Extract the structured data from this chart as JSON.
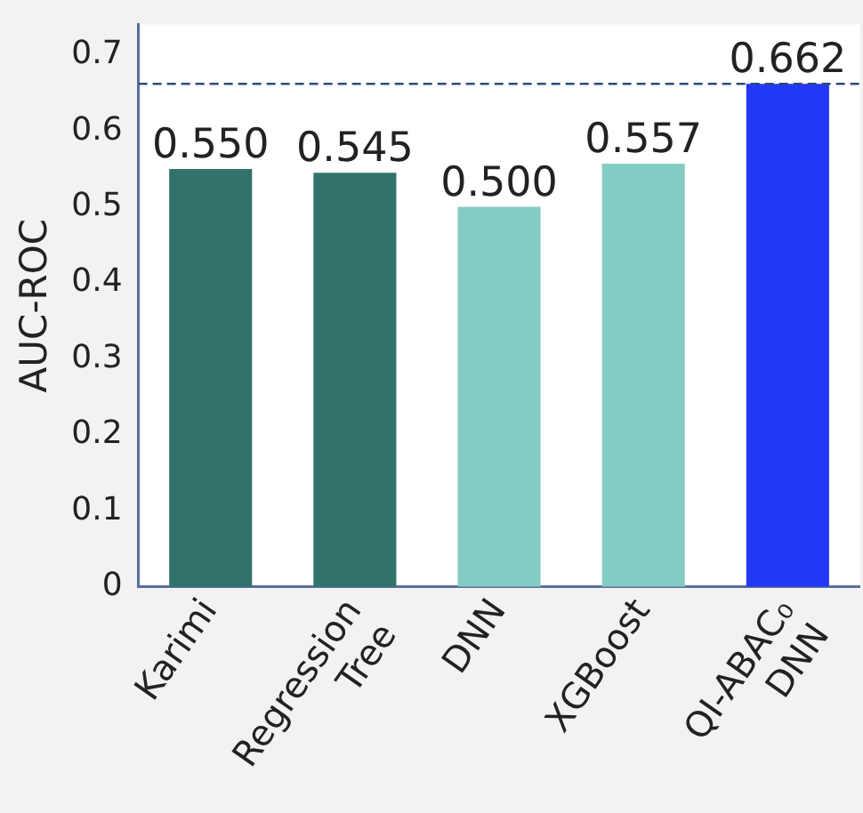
{
  "chart_data": {
    "type": "bar",
    "ylabel": "AUC-ROC",
    "categories": [
      "Karimi",
      "Regression Tree",
      "DNN",
      "XGBoost",
      "QI-ABAC₀ DNN"
    ],
    "values": [
      0.55,
      0.545,
      0.5,
      0.557,
      0.662
    ],
    "value_labels": [
      "0.550",
      "0.545",
      "0.500",
      "0.557",
      "0.662"
    ],
    "colors": [
      "#31736b",
      "#31736b",
      "#84cbc3",
      "#84cbc3",
      "#2238f5"
    ],
    "ylim": [
      0,
      0.74
    ],
    "yticks": [
      0,
      0.1,
      0.2,
      0.3,
      0.4,
      0.5,
      0.6,
      0.7
    ],
    "ref_lines": [
      {
        "axis": "y",
        "value": 0.662,
        "color": "#2e4a7a",
        "line_style": "dashed"
      }
    ],
    "grid": false,
    "legend": false
  }
}
